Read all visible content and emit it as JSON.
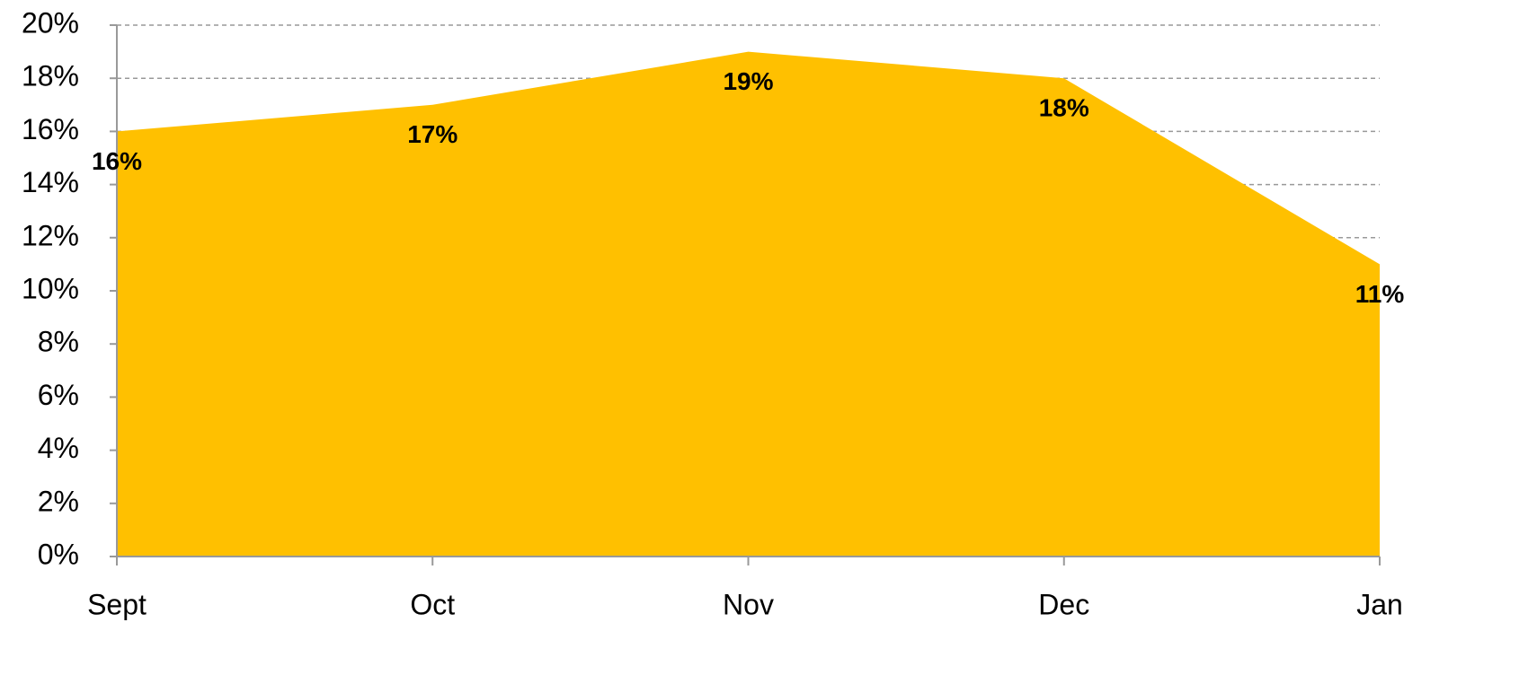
{
  "chart_data": {
    "type": "area",
    "categories": [
      "Sept",
      "Oct",
      "Nov",
      "Dec",
      "Jan"
    ],
    "values": [
      16,
      17,
      19,
      18,
      11
    ],
    "value_labels": [
      "16%",
      "17%",
      "19%",
      "18%",
      "11%"
    ],
    "color": "#FFC000",
    "ylim": [
      0,
      20
    ],
    "yticks": [
      {
        "value": 0,
        "label": "0%"
      },
      {
        "value": 2,
        "label": "2%"
      },
      {
        "value": 4,
        "label": "4%"
      },
      {
        "value": 6,
        "label": "6%"
      },
      {
        "value": 8,
        "label": "8%"
      },
      {
        "value": 10,
        "label": "10%"
      },
      {
        "value": 12,
        "label": "12%"
      },
      {
        "value": 14,
        "label": "14%"
      },
      {
        "value": 16,
        "label": "16%"
      },
      {
        "value": 18,
        "label": "18%"
      },
      {
        "value": 20,
        "label": "20%"
      }
    ],
    "grid": true
  }
}
